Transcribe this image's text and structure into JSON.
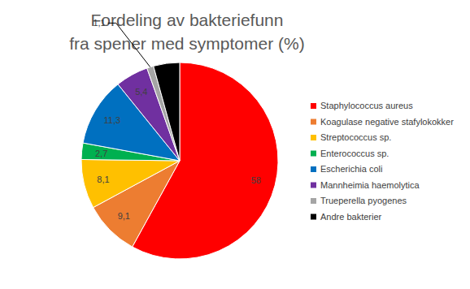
{
  "chart_data": {
    "type": "pie",
    "title": "Fordeling av bakteriefunn\nfra spener med symptomer (%)",
    "categories": [
      "Staphylococcus aureus",
      "Koagulase negative stafylokokker",
      "Streptococcus sp.",
      "Enterococcus sp.",
      "Escherichia coli",
      "Mannheimia haemolytica",
      "Trueperella pyogenes",
      "Andre bakterier"
    ],
    "values": [
      58,
      9.1,
      8.1,
      2.7,
      11.3,
      5.4,
      1.1,
      4.3
    ],
    "value_labels": [
      "58",
      "9,1",
      "8,1",
      "2,7",
      "11,3",
      "5,4",
      "1,1",
      null
    ],
    "colors": [
      "#ff0000",
      "#ed7d31",
      "#ffc000",
      "#00b050",
      "#0070c0",
      "#7030a0",
      "#a5a5a5",
      "#000000"
    ],
    "data_labels": true,
    "legend": "right"
  }
}
